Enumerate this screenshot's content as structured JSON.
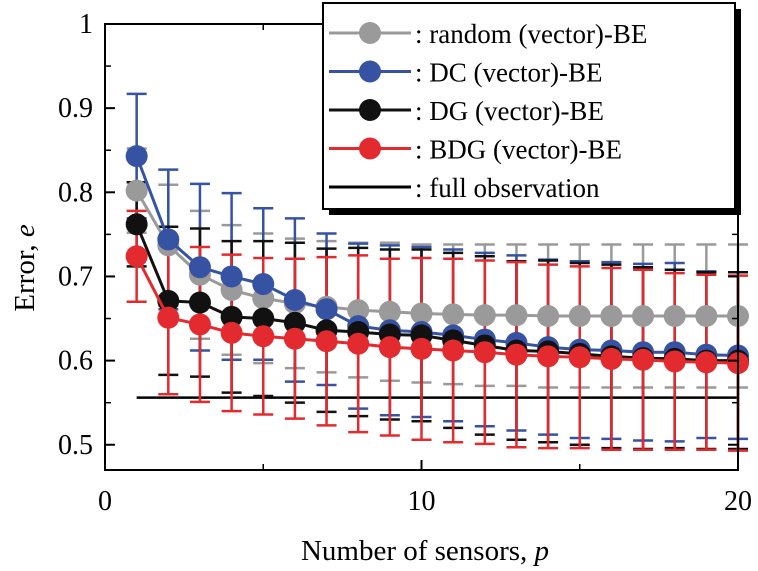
{
  "chart_data": {
    "type": "line",
    "xlabel": "Number of sensors, ",
    "xlabel_var": "p",
    "ylabel": "Error, ",
    "ylabel_var": "e",
    "xlim": [
      0,
      20
    ],
    "ylim": [
      0.47,
      1.0
    ],
    "xticks": [
      0,
      10,
      20
    ],
    "xtick_labels": [
      "0",
      "10",
      "20"
    ],
    "yticks": [
      0.5,
      0.6,
      0.7,
      0.8,
      0.9,
      1.0
    ],
    "ytick_labels": [
      "0.5",
      "0.6",
      "0.7",
      "0.8",
      "0.9",
      "1"
    ],
    "legend_position": "top-right",
    "x": [
      1,
      2,
      3,
      4,
      5,
      6,
      7,
      8,
      9,
      10,
      11,
      12,
      13,
      14,
      15,
      16,
      17,
      18,
      19,
      20
    ],
    "series": [
      {
        "name": ": random (vector)-BE",
        "color": "#9a9a9a",
        "values": [
          0.802,
          0.737,
          0.702,
          0.684,
          0.674,
          0.668,
          0.664,
          0.66,
          0.658,
          0.656,
          0.655,
          0.654,
          0.654,
          0.653,
          0.653,
          0.653,
          0.653,
          0.653,
          0.653,
          0.653
        ],
        "err": [
          0.05,
          0.072,
          0.076,
          0.077,
          0.077,
          0.077,
          0.078,
          0.08,
          0.082,
          0.082,
          0.083,
          0.084,
          0.084,
          0.085,
          0.085,
          0.085,
          0.085,
          0.085,
          0.085,
          0.085
        ]
      },
      {
        "name": ": DC (vector)-BE",
        "color": "#3552a3",
        "values": [
          0.843,
          0.744,
          0.711,
          0.7,
          0.691,
          0.672,
          0.661,
          0.641,
          0.636,
          0.634,
          0.63,
          0.625,
          0.621,
          0.616,
          0.613,
          0.612,
          0.61,
          0.61,
          0.607,
          0.606
        ],
        "err": [
          0.074,
          0.083,
          0.099,
          0.099,
          0.09,
          0.097,
          0.09,
          0.098,
          0.101,
          0.101,
          0.102,
          0.103,
          0.104,
          0.104,
          0.105,
          0.105,
          0.105,
          0.106,
          0.099,
          0.099
        ]
      },
      {
        "name": ": DG (vector)-BE",
        "color": "#111111",
        "values": [
          0.762,
          0.671,
          0.669,
          0.652,
          0.65,
          0.645,
          0.636,
          0.634,
          0.631,
          0.63,
          0.624,
          0.618,
          0.612,
          0.611,
          0.608,
          0.605,
          0.603,
          0.602,
          0.6,
          0.6
        ],
        "err": [
          0.05,
          0.088,
          0.088,
          0.09,
          0.092,
          0.095,
          0.097,
          0.1,
          0.101,
          0.102,
          0.104,
          0.106,
          0.106,
          0.108,
          0.108,
          0.109,
          0.108,
          0.106,
          0.105,
          0.105
        ]
      },
      {
        "name": ": BDG (vector)-BE",
        "color": "#e32a2f",
        "values": [
          0.724,
          0.651,
          0.643,
          0.633,
          0.629,
          0.626,
          0.623,
          0.62,
          0.616,
          0.614,
          0.612,
          0.61,
          0.607,
          0.605,
          0.604,
          0.602,
          0.601,
          0.599,
          0.598,
          0.597
        ],
        "err": [
          0.054,
          0.091,
          0.092,
          0.093,
          0.093,
          0.095,
          0.1,
          0.105,
          0.105,
          0.108,
          0.109,
          0.109,
          0.11,
          0.109,
          0.108,
          0.108,
          0.107,
          0.105,
          0.104,
          0.104
        ]
      }
    ],
    "reference_line": {
      "name": ": full observation",
      "value": 0.556,
      "x_range": [
        1,
        20
      ],
      "color": "#000000"
    }
  }
}
